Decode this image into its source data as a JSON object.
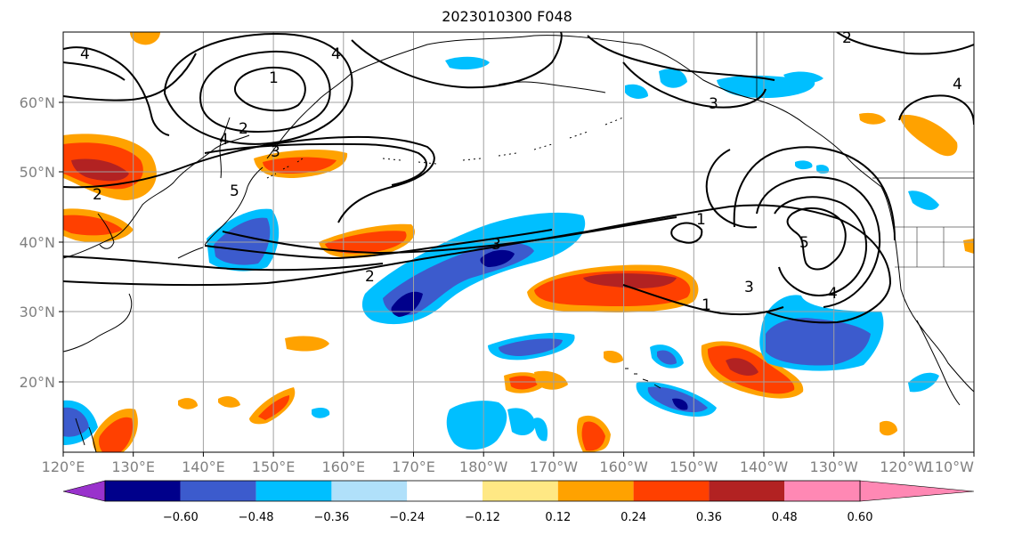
{
  "title": "2023010300 F048",
  "map": {
    "lat_ticks": [
      "60°N",
      "50°N",
      "40°N",
      "30°N",
      "20°N"
    ],
    "lon_ticks": [
      "120°E",
      "130°E",
      "140°E",
      "150°E",
      "160°E",
      "170°E",
      "180°W",
      "170°W",
      "160°W",
      "150°W",
      "140°W",
      "130°W",
      "120°W",
      "110°W"
    ],
    "contour_labels": [
      "4",
      "4",
      "1",
      "2",
      "3",
      "4",
      "2",
      "5",
      "3",
      "2",
      "1",
      "1",
      "3",
      "5",
      "4",
      "2",
      "3",
      "4"
    ]
  },
  "colorbar": {
    "ticks": [
      "−0.60",
      "−0.48",
      "−0.36",
      "−0.24",
      "−0.12",
      "0.12",
      "0.24",
      "0.36",
      "0.48",
      "0.60"
    ],
    "colors": [
      "#9932cc",
      "#00008b",
      "#3c5bcd",
      "#00bfff",
      "#b0e0fa",
      "#ffffff",
      "#ffe884",
      "#ffa200",
      "#ff4000",
      "#b22222",
      "#ff88b4"
    ]
  }
}
